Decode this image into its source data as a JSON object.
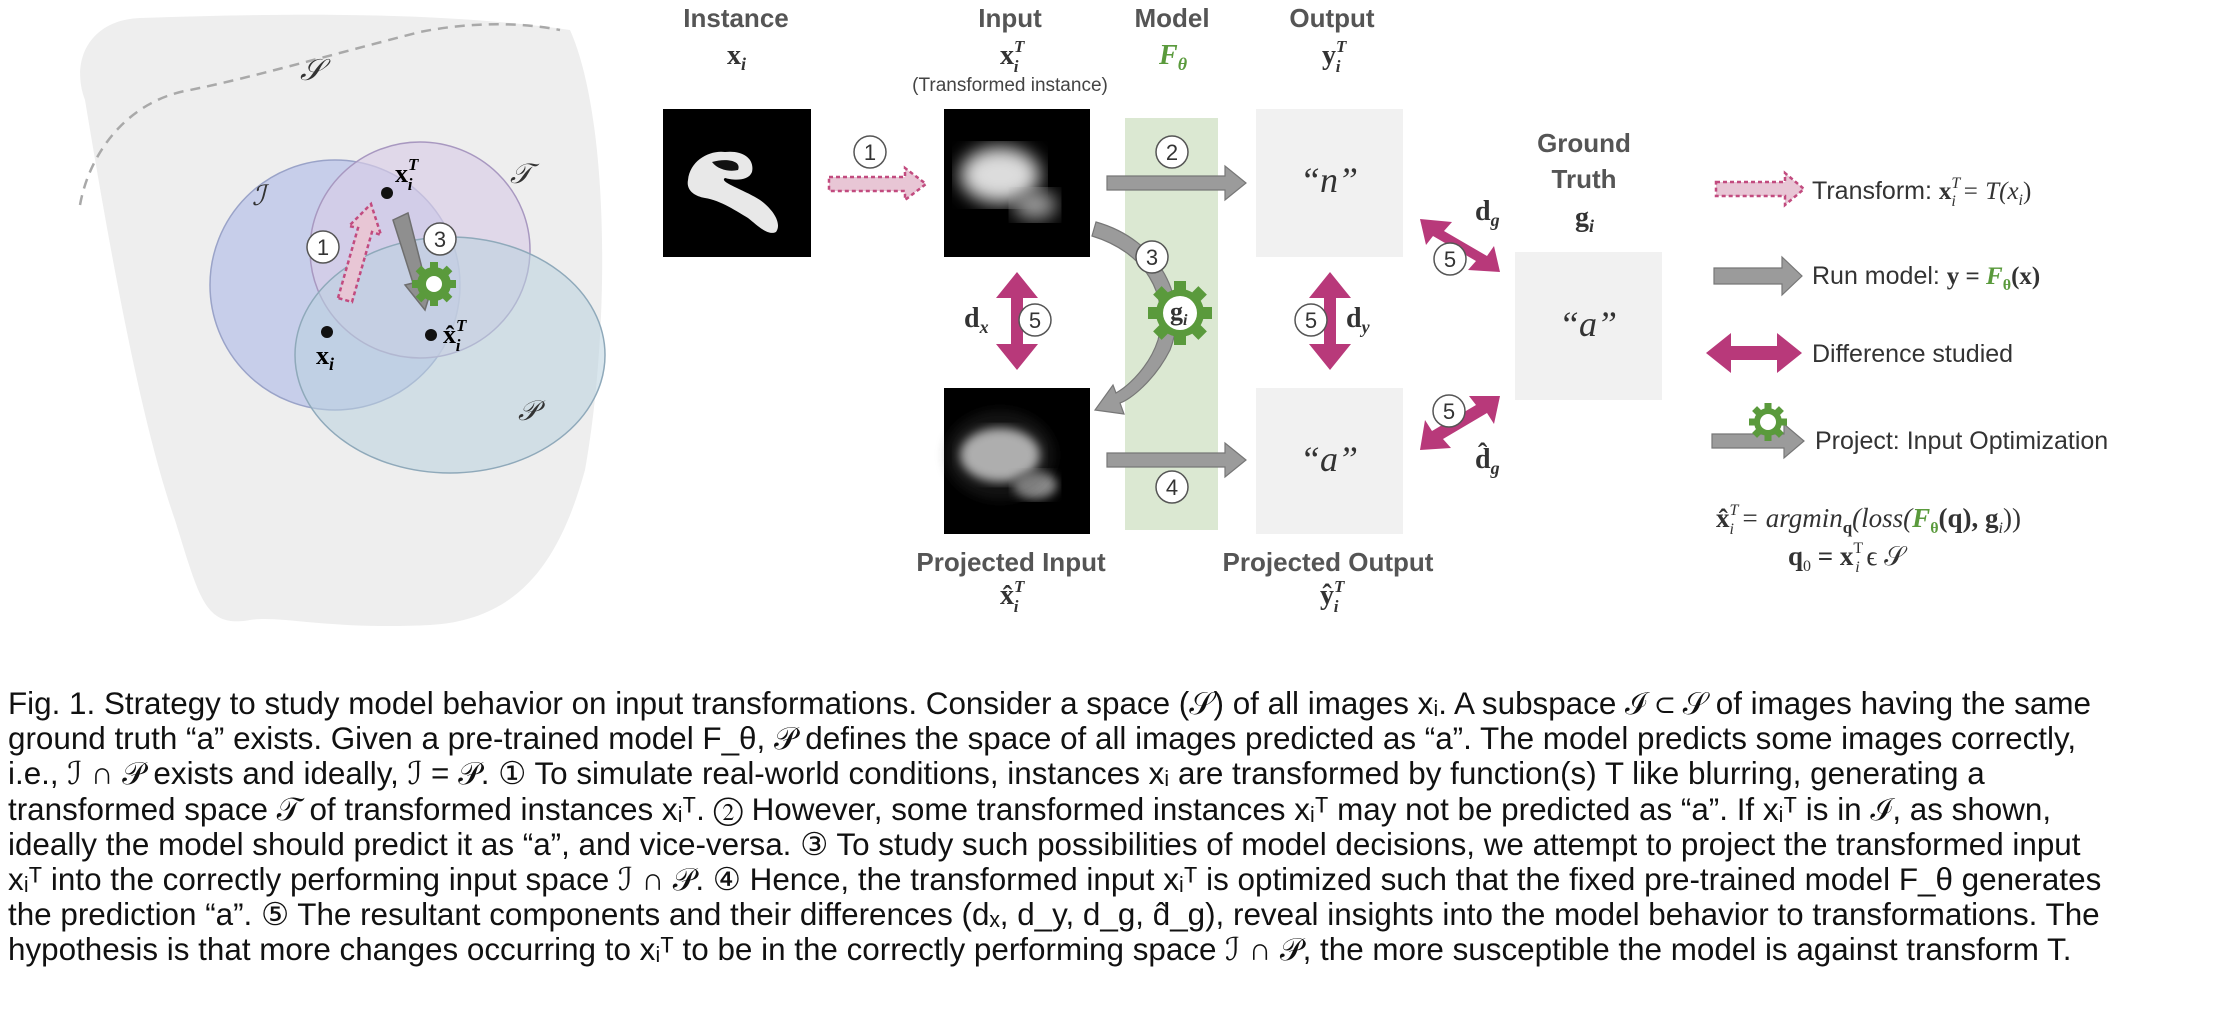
{
  "figure": {
    "venn": {
      "space_label": "𝒮",
      "set_I": "ℐ",
      "set_T": "𝒯",
      "set_P": "𝒫",
      "point_xi": "x",
      "point_xi_sub": "i",
      "point_xiT": "x",
      "point_xiT_sub": "i",
      "point_xiT_sup": "T",
      "point_xhat": "x̂",
      "point_xhat_sub": "i",
      "point_xhat_sup": "T",
      "step1": "1",
      "step3": "3"
    },
    "columns": {
      "instance": {
        "title": "Instance",
        "symbol": "x",
        "sub": "i"
      },
      "input": {
        "title": "Input",
        "symbol": "x",
        "sub": "i",
        "sup": "T",
        "note": "(Transformed instance)"
      },
      "model": {
        "title": "Model",
        "symbol": "F",
        "sub": "θ"
      },
      "output": {
        "title": "Output",
        "symbol": "y",
        "sub": "i",
        "sup": "T"
      },
      "ground_truth": {
        "title_line1": "Ground",
        "title_line2": "Truth",
        "symbol": "g",
        "sub": "i",
        "value": "“a”"
      },
      "projected_input": {
        "title": "Projected Input",
        "symbol": "x̂",
        "sub": "i",
        "sup": "T"
      },
      "projected_output": {
        "title": "Projected Output",
        "symbol": "ŷ",
        "sub": "i",
        "sup": "T"
      }
    },
    "outputs": {
      "top_value": "“n”",
      "bottom_value": "“a”"
    },
    "steps": {
      "s1": "1",
      "s2": "2",
      "s3": "3",
      "s4": "4",
      "s5": "5"
    },
    "differences": {
      "dx": "d",
      "dx_sub": "x",
      "dy": "d",
      "dy_sub": "y",
      "dg": "d",
      "dg_sub": "g",
      "dg_hat": "d̂",
      "dg_hat_sub": "g"
    },
    "gear_label": "g",
    "gear_label_sub": "i",
    "legend": {
      "transform_label": "Transform: ",
      "transform_eq": "x",
      "transform_eq_rest": " = T(x",
      "run_label": "Run model:  ",
      "run_eq": "y = ",
      "run_eq_model": "F",
      "run_eq_rest": "(x)",
      "diff_label": "Difference studied",
      "project_label": "Project: Input Optimization",
      "formula1_lhs": "x̂",
      "formula1_mid": " = argmin",
      "formula1_q": "q",
      "formula1_rest1": "(loss(",
      "formula1_model": "F",
      "formula1_rest2": "(q), g",
      "formula1_end": "))",
      "formula2": "q",
      "formula2_rest": " = x",
      "formula2_end": " ϵ 𝒮"
    },
    "colors": {
      "transform_arrow": "#c24b7f",
      "diff_arrow": "#b8397a",
      "run_arrow": "#8f8f8f",
      "model_band": "#dbe8d2",
      "model_green": "#5a9a3c",
      "output_box": "#f1f1f1",
      "set_I": "#b9c3e8",
      "set_T": "#d8cde6",
      "set_P": "#b9d1df"
    }
  },
  "caption": {
    "line1": "Fig. 1. Strategy to study model behavior on input transformations. Consider a space (𝒮) of all images xᵢ. A subspace ℐ ⊂ 𝒮 of images having the same",
    "line2": "ground truth “a” exists. Given a pre-trained model F_θ, 𝒫 defines the space of all images predicted as “a”. The model predicts some images correctly,",
    "line3": "i.e., ℐ ∩ 𝒫 exists and ideally, ℐ = 𝒫. ① To simulate real-world conditions, instances xᵢ are transformed by function(s) T like blurring, generating a",
    "line4": "transformed space 𝒯 of transformed instances xᵢᵀ. ② However, some transformed instances xᵢᵀ may not be predicted as “a”. If xᵢᵀ is in ℐ, as shown,",
    "line5": "ideally the model should predict it as “a”, and vice-versa. ③ To study such possibilities of model decisions, we attempt to project the transformed input",
    "line6": "xᵢᵀ into the correctly performing input space ℐ ∩ 𝒫. ④ Hence, the transformed input xᵢᵀ is optimized such that the fixed pre-trained model F_θ generates",
    "line7": "the prediction “a”. ⑤ The resultant components and their differences (dₓ, d_y, d_g, d̂_g), reveal insights into the model behavior to transformations. The",
    "line8": "hypothesis is that more changes occurring to xᵢᵀ to be in the correctly performing space ℐ ∩ 𝒫, the more susceptible the model is against transform T."
  }
}
